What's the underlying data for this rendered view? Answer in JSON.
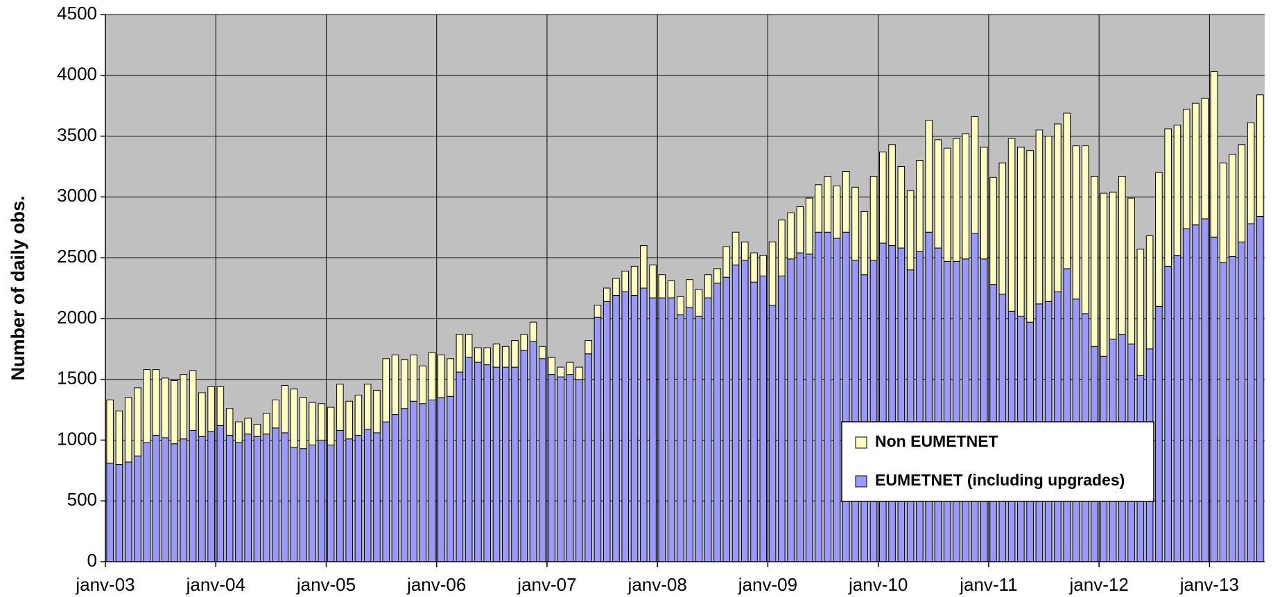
{
  "chart_data": {
    "type": "stacked_bar",
    "y_label": "Number of daily obs.",
    "categories": [
      "janv-03",
      null,
      null,
      null,
      null,
      null,
      null,
      null,
      null,
      null,
      null,
      null,
      "janv-04",
      null,
      null,
      null,
      null,
      null,
      null,
      null,
      null,
      null,
      null,
      null,
      "janv-05",
      null,
      null,
      null,
      null,
      null,
      null,
      null,
      null,
      null,
      null,
      null,
      "janv-06",
      null,
      null,
      null,
      null,
      null,
      null,
      null,
      null,
      null,
      null,
      null,
      "janv-07",
      null,
      null,
      null,
      null,
      null,
      null,
      null,
      null,
      null,
      null,
      null,
      "janv-08",
      null,
      null,
      null,
      null,
      null,
      null,
      null,
      null,
      null,
      null,
      null,
      "janv-09",
      null,
      null,
      null,
      null,
      null,
      null,
      null,
      null,
      null,
      null,
      null,
      "janv-10",
      null,
      null,
      null,
      null,
      null,
      null,
      null,
      null,
      null,
      null,
      null,
      "janv-11",
      null,
      null,
      null,
      null,
      null,
      null,
      null,
      null,
      null,
      null,
      null,
      "janv-12",
      null,
      null,
      null,
      null,
      null,
      null,
      null,
      null,
      null,
      null,
      null,
      "janv-13",
      null,
      null,
      null,
      null,
      null
    ],
    "series": [
      {
        "name": "EUMETNET (including upgrades)",
        "color": "#9999ff",
        "values": [
          810,
          800,
          820,
          870,
          980,
          1040,
          1020,
          970,
          1010,
          1080,
          1030,
          1070,
          1120,
          1040,
          980,
          1050,
          1030,
          1050,
          1100,
          1060,
          940,
          930,
          960,
          1000,
          960,
          1080,
          1010,
          1040,
          1090,
          1060,
          1150,
          1210,
          1260,
          1320,
          1300,
          1330,
          1350,
          1360,
          1560,
          1680,
          1640,
          1620,
          1600,
          1600,
          1600,
          1740,
          1810,
          1670,
          1540,
          1520,
          1540,
          1500,
          1710,
          2010,
          2140,
          2190,
          2220,
          2190,
          2250,
          2170,
          2170,
          2170,
          2030,
          2090,
          2020,
          2170,
          2290,
          2340,
          2440,
          2480,
          2300,
          2350,
          2110,
          2350,
          2490,
          2540,
          2530,
          2710,
          2710,
          2660,
          2710,
          2480,
          2360,
          2480,
          2620,
          2600,
          2580,
          2400,
          2550,
          2710,
          2580,
          2470,
          2470,
          2490,
          2700,
          2490,
          2280,
          2200,
          2060,
          2020,
          1970,
          2120,
          2140,
          2220,
          2410,
          2160,
          2040,
          1770,
          1690,
          1830,
          1870,
          1790,
          1530,
          1750,
          2100,
          2430,
          2520,
          2740,
          2770,
          2820,
          2670,
          2460,
          2510,
          2630,
          2780,
          2840
        ]
      },
      {
        "name": "Non EUMETNET",
        "color": "#ffffc0",
        "values": [
          520,
          440,
          530,
          560,
          600,
          540,
          490,
          520,
          530,
          490,
          360,
          370,
          320,
          220,
          170,
          130,
          100,
          170,
          230,
          390,
          480,
          420,
          350,
          300,
          310,
          380,
          310,
          330,
          370,
          350,
          520,
          490,
          400,
          380,
          310,
          390,
          350,
          310,
          310,
          190,
          120,
          140,
          190,
          170,
          220,
          130,
          160,
          100,
          140,
          80,
          100,
          100,
          110,
          100,
          110,
          140,
          170,
          240,
          350,
          270,
          190,
          140,
          150,
          230,
          220,
          190,
          120,
          250,
          270,
          150,
          240,
          170,
          520,
          460,
          380,
          380,
          460,
          390,
          460,
          430,
          500,
          600,
          520,
          690,
          750,
          830,
          670,
          650,
          750,
          920,
          890,
          930,
          1010,
          1030,
          960,
          920,
          880,
          1080,
          1420,
          1390,
          1410,
          1430,
          1360,
          1380,
          1280,
          1260,
          1380,
          1400,
          1340,
          1210,
          1300,
          1200,
          1040,
          930,
          1100,
          1130,
          1070,
          980,
          1000,
          990,
          1360,
          820,
          840,
          800,
          830,
          1000
        ]
      }
    ],
    "ylim": [
      0,
      4500
    ],
    "yticks": [
      0,
      500,
      1000,
      1500,
      2000,
      2500,
      3000,
      3500,
      4000,
      4500
    ],
    "grid": true,
    "plot_background": "#c0c0c0",
    "legend": "lower right"
  }
}
